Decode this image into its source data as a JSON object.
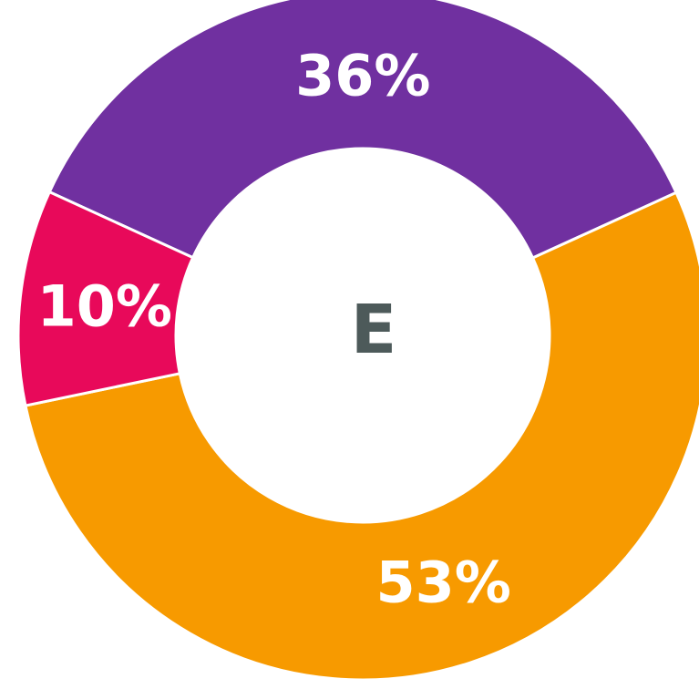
{
  "chart_data": {
    "type": "donut",
    "center_label": "E",
    "values": [
      36,
      53,
      10
    ],
    "value_labels": [
      "36%",
      "53%",
      "10%"
    ],
    "colors": [
      "#7030a0",
      "#f79a00",
      "#e8095a"
    ]
  }
}
